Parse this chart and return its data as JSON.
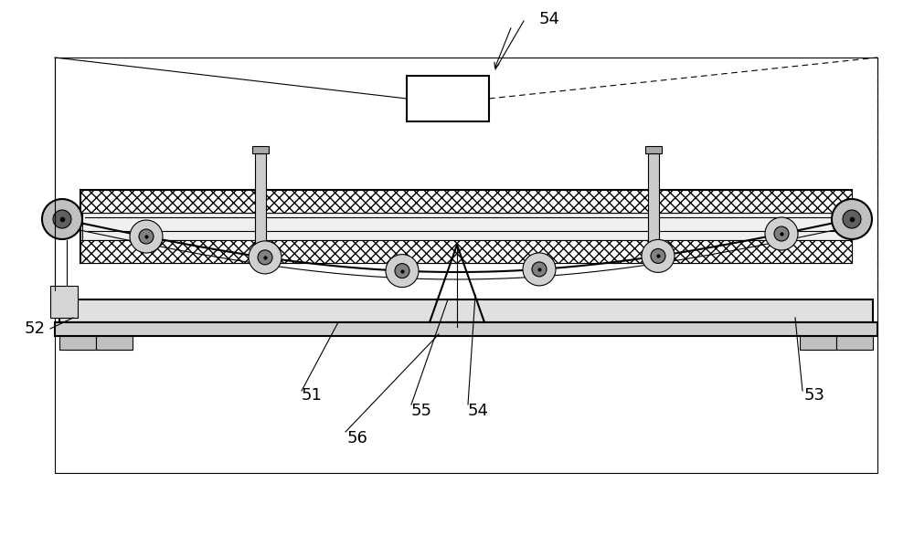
{
  "bg_color": "#ffffff",
  "line_color": "#000000",
  "hatch_color": "#555555",
  "fig_width": 10.0,
  "fig_height": 5.98,
  "labels": {
    "54_top": "54",
    "52": "52",
    "51": "51",
    "55": "55",
    "54_bot": "54",
    "53": "53",
    "56": "56"
  }
}
